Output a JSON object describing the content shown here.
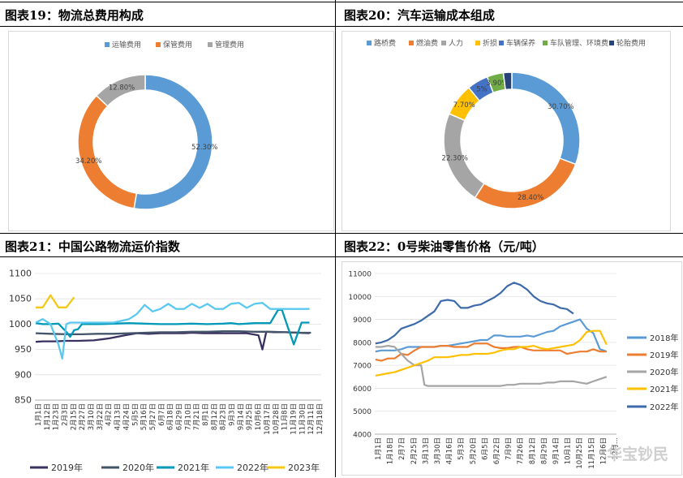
{
  "panels": [
    {
      "title": "图表19：物流总费用构成"
    },
    {
      "title": "图表20：汽车运输成本组成"
    },
    {
      "title": "图表21：中国公路物流运价指数"
    },
    {
      "title": "图表22：0号柴油零售价格（元/吨）"
    }
  ],
  "watermark": "华宝钞民",
  "chart_data": [
    {
      "type": "pie",
      "donut": true,
      "title": "",
      "legend_position": "top",
      "labels": [
        "运输费用",
        "保管费用",
        "管理费用"
      ],
      "values": [
        52.3,
        34.2,
        12.8
      ],
      "value_labels": [
        "52.30%",
        "34.20%",
        "12.80%"
      ],
      "colors": [
        "#5b9bd5",
        "#ed7d31",
        "#a5a5a5"
      ]
    },
    {
      "type": "pie",
      "donut": true,
      "title": "",
      "legend_position": "top",
      "labels": [
        "路桥费",
        "燃油费",
        "人力",
        "折损",
        "车辆保养",
        "车队管理、环境费",
        "轮胎费用"
      ],
      "values": [
        30.7,
        28.4,
        22.3,
        7.7,
        5.0,
        3.9,
        2.0
      ],
      "value_labels": [
        "30.70%",
        "28.40%",
        "22.30%",
        "7.70%",
        "5%",
        "3.90%",
        ""
      ],
      "colors": [
        "#5b9bd5",
        "#ed7d31",
        "#a5a5a5",
        "#ffc000",
        "#4472c4",
        "#70ad47",
        "#264478"
      ]
    },
    {
      "type": "line",
      "title": "",
      "legend_position": "bottom",
      "ylim": [
        850,
        1100
      ],
      "y_ticks": [
        850,
        900,
        950,
        1000,
        1050,
        1100
      ],
      "x_ticks": [
        "1月1日",
        "1月12日",
        "1月23日",
        "2月3日",
        "2月15日",
        "2月27日",
        "3月10日",
        "3月22日",
        "4月2日",
        "4月13日",
        "4月24日",
        "5月5日",
        "5月16日",
        "5月27日",
        "6月7日",
        "6月18日",
        "6月29日",
        "7月10日",
        "7月21日",
        "8月1日",
        "8月12日",
        "8月23日",
        "9月3日",
        "9月14日",
        "9月25日",
        "10月6日",
        "10月17日",
        "10月28日",
        "11月8日",
        "11月19日",
        "11月30日",
        "12月11日",
        "12月18日"
      ],
      "series": [
        {
          "name": "2019年",
          "color": "#3a3160",
          "x": [
            1,
            10,
            25,
            40,
            55,
            75,
            95,
            115,
            130,
            145,
            160,
            175,
            190,
            200,
            215,
            230,
            250,
            270,
            285,
            290,
            295,
            305,
            320,
            335,
            350
          ],
          "y": [
            965,
            966,
            966,
            967,
            967,
            968,
            972,
            978,
            982,
            981,
            982,
            982,
            982,
            983,
            982,
            982,
            982,
            982,
            978,
            950,
            985,
            984,
            984,
            983,
            982
          ]
        },
        {
          "name": "2020年",
          "color": "#44546a",
          "x": [
            1,
            20,
            40,
            60,
            80,
            100,
            120,
            140,
            160,
            180,
            200,
            220,
            240,
            260,
            280,
            300,
            320,
            340,
            352
          ],
          "y": [
            982,
            981,
            980,
            980,
            981,
            981,
            982,
            983,
            984,
            984,
            985,
            985,
            986,
            986,
            985,
            985,
            984,
            983,
            983
          ]
        },
        {
          "name": "2021年",
          "color": "#0099b8",
          "x": [
            1,
            10,
            20,
            30,
            40,
            45,
            50,
            55,
            60,
            70,
            80,
            100,
            120,
            140,
            160,
            180,
            200,
            220,
            240,
            250,
            260,
            270,
            280,
            290,
            300,
            310,
            315,
            320,
            330,
            340,
            350
          ],
          "y": [
            1002,
            1000,
            1000,
            1001,
            985,
            975,
            988,
            990,
            1000,
            1000,
            1000,
            1001,
            1002,
            1001,
            1000,
            1000,
            1001,
            1000,
            1001,
            1002,
            1000,
            1001,
            1002,
            1002,
            1002,
            1028,
            1028,
            1005,
            960,
            1003,
            1003
          ]
        },
        {
          "name": "2022年",
          "color": "#5bc8f0",
          "x": [
            1,
            10,
            20,
            30,
            35,
            40,
            45,
            50,
            60,
            80,
            100,
            120,
            130,
            140,
            150,
            160,
            170,
            180,
            190,
            200,
            210,
            220,
            230,
            240,
            250,
            260,
            270,
            280,
            290,
            300,
            310,
            320,
            330,
            340,
            350
          ],
          "y": [
            1003,
            1010,
            1000,
            960,
            932,
            1000,
            1003,
            1003,
            1003,
            1003,
            1003,
            1010,
            1020,
            1038,
            1025,
            1030,
            1040,
            1030,
            1030,
            1040,
            1032,
            1040,
            1030,
            1030,
            1040,
            1042,
            1032,
            1040,
            1042,
            1030,
            1030,
            1030,
            1030,
            1030,
            1030
          ]
        },
        {
          "name": "2023年",
          "color": "#f5c818",
          "x": [
            1,
            10,
            20,
            30,
            40,
            50
          ],
          "y": [
            1033,
            1033,
            1057,
            1033,
            1033,
            1053
          ]
        }
      ]
    },
    {
      "type": "line",
      "title": "",
      "legend_position": "right",
      "ylim": [
        4000,
        11000
      ],
      "y_ticks": [
        4000,
        5000,
        6000,
        7000,
        8000,
        9000,
        10000,
        11000
      ],
      "x_ticks": [
        "1月1日",
        "1月18日",
        "2月7日",
        "2月25日",
        "3月13日",
        "3月30日",
        "4月16日",
        "5月3日",
        "5月20日",
        "6月5日",
        "6月22日",
        "7月9日",
        "7月26日",
        "8月12日",
        "8月29日",
        "9月14日",
        "10月1日",
        "10月25日",
        "11月15日",
        "12月6日",
        "12月..."
      ],
      "series": [
        {
          "name": "2018年",
          "color": "#5b9bd5",
          "x": [
            1,
            10,
            20,
            30,
            40,
            50,
            60,
            70,
            80,
            90,
            100,
            110,
            120,
            130,
            140,
            150,
            160,
            170,
            180,
            190,
            200,
            210,
            220,
            230,
            240,
            250,
            260,
            270,
            280,
            290,
            300,
            310,
            320,
            330,
            340,
            350
          ],
          "y": [
            7600,
            7650,
            7650,
            7650,
            7700,
            7800,
            7800,
            7800,
            7800,
            7800,
            7850,
            7850,
            7900,
            7950,
            8000,
            8050,
            8100,
            8100,
            8300,
            8300,
            8250,
            8250,
            8250,
            8300,
            8250,
            8350,
            8450,
            8500,
            8700,
            8800,
            8900,
            9000,
            8600,
            8400,
            7700,
            7600
          ]
        },
        {
          "name": "2019年",
          "color": "#ed7d31",
          "x": [
            1,
            10,
            20,
            30,
            40,
            50,
            60,
            70,
            80,
            90,
            100,
            110,
            120,
            130,
            140,
            150,
            160,
            170,
            180,
            190,
            200,
            210,
            220,
            230,
            240,
            250,
            260,
            270,
            280,
            290,
            300,
            310,
            320,
            330,
            340,
            350
          ],
          "y": [
            7250,
            7200,
            7300,
            7300,
            7500,
            7450,
            7650,
            7800,
            7800,
            7800,
            7850,
            7850,
            7800,
            7800,
            7800,
            7950,
            7950,
            7950,
            7800,
            7750,
            7750,
            7800,
            7800,
            7700,
            7650,
            7650,
            7650,
            7650,
            7650,
            7500,
            7550,
            7600,
            7600,
            7700,
            7600,
            7600
          ]
        },
        {
          "name": "2020年",
          "color": "#a5a5a5",
          "x": [
            1,
            10,
            20,
            30,
            40,
            50,
            60,
            70,
            75,
            80,
            90,
            100,
            110,
            120,
            130,
            140,
            150,
            160,
            170,
            180,
            190,
            200,
            210,
            220,
            230,
            240,
            250,
            260,
            270,
            280,
            290,
            300,
            310,
            320,
            330,
            340,
            350
          ],
          "y": [
            7800,
            7800,
            7850,
            7800,
            7500,
            7200,
            7000,
            7000,
            6150,
            6100,
            6100,
            6100,
            6100,
            6100,
            6100,
            6100,
            6100,
            6100,
            6100,
            6100,
            6100,
            6150,
            6150,
            6200,
            6200,
            6200,
            6200,
            6250,
            6250,
            6300,
            6300,
            6300,
            6250,
            6200,
            6300,
            6400,
            6500
          ]
        },
        {
          "name": "2021年",
          "color": "#ffc000",
          "x": [
            1,
            10,
            20,
            30,
            40,
            50,
            60,
            70,
            80,
            90,
            100,
            110,
            120,
            130,
            140,
            150,
            160,
            170,
            180,
            190,
            200,
            210,
            220,
            230,
            240,
            250,
            260,
            270,
            280,
            290,
            300,
            310,
            320,
            330,
            340,
            350
          ],
          "y": [
            6550,
            6600,
            6650,
            6700,
            6800,
            6900,
            7000,
            7100,
            7200,
            7350,
            7350,
            7350,
            7400,
            7450,
            7450,
            7500,
            7500,
            7500,
            7550,
            7650,
            7700,
            7700,
            7800,
            7800,
            7850,
            7750,
            7700,
            7750,
            7800,
            7850,
            7900,
            8100,
            8450,
            8500,
            8500,
            7900
          ]
        },
        {
          "name": "2022年",
          "color": "#3c6aaa",
          "x": [
            1,
            10,
            20,
            30,
            40,
            50,
            60,
            70,
            80,
            90,
            100,
            110,
            120,
            130,
            140,
            150,
            160,
            170,
            180,
            190,
            200,
            210,
            220,
            230,
            240,
            250,
            260,
            270,
            280,
            290,
            300
          ],
          "y": [
            7950,
            8000,
            8100,
            8300,
            8600,
            8700,
            8800,
            8950,
            9150,
            9350,
            9800,
            9850,
            9800,
            9500,
            9500,
            9600,
            9650,
            9800,
            9950,
            10150,
            10450,
            10600,
            10500,
            10300,
            10000,
            9800,
            9700,
            9650,
            9500,
            9450,
            9250
          ]
        }
      ]
    }
  ]
}
